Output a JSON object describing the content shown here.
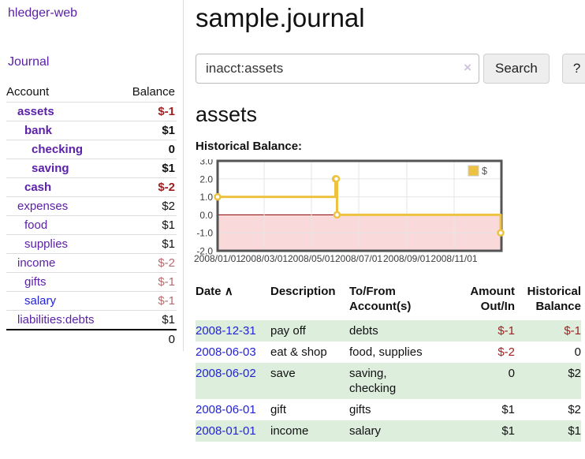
{
  "palette": {
    "purple": "#5b21a8",
    "blue": "#2323d6",
    "red-strong": "#9d1f1f",
    "red-muted": "#b96a6e",
    "stripe": "#ddeedd",
    "gold": "#edc240",
    "divider": "#dcdcdc",
    "chart-border": "#545454",
    "btn-bg": "#eeeeee",
    "btn-border": "#d0d0d0",
    "input-border": "#bbbbbb",
    "clear": "#cfc3de"
  },
  "sidebar": {
    "title": "hledger-web",
    "journal_label": "Journal",
    "headers": [
      "Account",
      "Balance"
    ],
    "accounts": [
      {
        "name": "assets",
        "balance": "$-1"
      },
      {
        "name": "bank",
        "balance": "$1"
      },
      {
        "name": "checking",
        "balance": "0"
      },
      {
        "name": "saving",
        "balance": "$1"
      },
      {
        "name": "cash",
        "balance": "$-2"
      },
      {
        "name": "expenses",
        "balance": "$2"
      },
      {
        "name": "food",
        "balance": "$1"
      },
      {
        "name": "supplies",
        "balance": "$1"
      },
      {
        "name": "income",
        "balance": "$-2"
      },
      {
        "name": "gifts",
        "balance": "$-1"
      },
      {
        "name": "salary",
        "balance": "$-1"
      },
      {
        "name": "liabilities:debts",
        "balance": "$1"
      }
    ],
    "total": "0"
  },
  "main": {
    "title": "sample.journal",
    "search": {
      "value": "inacct:assets",
      "clear_icon": "×",
      "button_label": "Search",
      "help_label": "?"
    },
    "account_heading": "assets"
  },
  "register": {
    "headers": [
      "Date",
      "Description",
      "To/From Account(s)",
      "Amount Out/In",
      "Historical Balance"
    ],
    "sort_icon": "∧",
    "rows": [
      {
        "date": "2008-12-31",
        "description": "pay off",
        "accounts": "debts",
        "amount": "$-1",
        "balance": "$-1"
      },
      {
        "date": "2008-06-03",
        "description": "eat & shop",
        "accounts": "food, supplies",
        "amount": "$-2",
        "balance": "0"
      },
      {
        "date": "2008-06-02",
        "description": "save",
        "accounts": "saving,\nchecking",
        "amount": "0",
        "balance": "$2"
      },
      {
        "date": "2008-06-01",
        "description": "gift",
        "accounts": "gifts",
        "amount": "$1",
        "balance": "$2"
      },
      {
        "date": "2008-01-01",
        "description": "income",
        "accounts": "salary",
        "amount": "$1",
        "balance": "$1"
      }
    ]
  },
  "chart_data": {
    "type": "line",
    "title": "Historical Balance:",
    "steps": true,
    "x_type": "date",
    "xrange": [
      "2008-01-01",
      "2009-01-01"
    ],
    "ylim": [
      -2,
      3
    ],
    "yticks": [
      "3.0",
      "2.0",
      "1.0",
      "0.0",
      "-1.0",
      "-2.0"
    ],
    "xticks": [
      "2008/01/01",
      "2008/03/01",
      "2008/05/01",
      "2008/07/01",
      "2008/09/01",
      "2008/11/01"
    ],
    "series": [
      {
        "name": "$",
        "color": "#edc240",
        "points": [
          [
            "2008-01-01",
            1
          ],
          [
            "2008-06-01",
            2
          ],
          [
            "2008-06-02",
            2
          ],
          [
            "2008-06-03",
            0
          ],
          [
            "2008-12-31",
            -1
          ]
        ]
      }
    ],
    "legend": {
      "label": "$",
      "position": "top-right"
    },
    "grid": true,
    "grid_color": "#e6e6e6",
    "zero_line_color": "#8b0000",
    "negative_region_color": "#f9d9d9"
  }
}
